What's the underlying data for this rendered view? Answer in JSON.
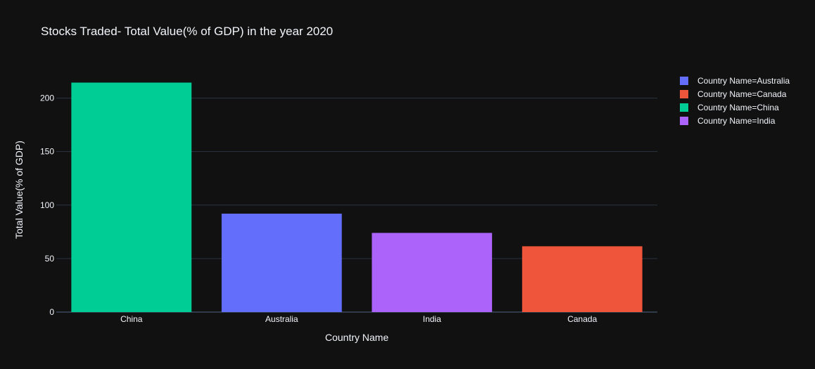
{
  "chart_data": {
    "type": "bar",
    "title": "Stocks Traded- Total Value(% of GDP) in the year 2020",
    "xlabel": "Country Name",
    "ylabel": "Total Value(% of GDP)",
    "ylim": [
      0,
      226
    ],
    "yticks": [
      0,
      50,
      100,
      150,
      200
    ],
    "categories": [
      "China",
      "Australia",
      "India",
      "Canada"
    ],
    "values": [
      214.5,
      92,
      74,
      61.5
    ],
    "grid": true,
    "legend_position": "top-right",
    "series": [
      {
        "name": "Country Name=Australia",
        "color": "#636efa",
        "category": "Australia",
        "value": 92
      },
      {
        "name": "Country Name=Canada",
        "color": "#ef553b",
        "category": "Canada",
        "value": 61.5
      },
      {
        "name": "Country Name=China",
        "color": "#00cc96",
        "category": "China",
        "value": 214.5
      },
      {
        "name": "Country Name=India",
        "color": "#ab63fa",
        "category": "India",
        "value": 74
      }
    ]
  }
}
